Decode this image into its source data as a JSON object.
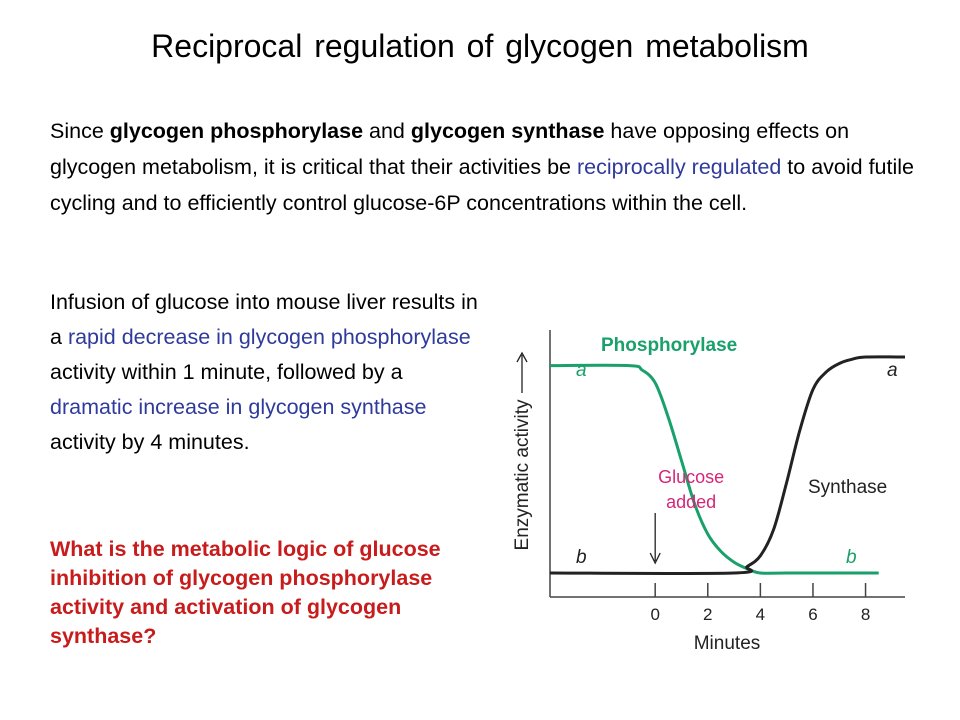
{
  "slide": {
    "title": "Reciprocal regulation of glycogen metabolism",
    "intro": {
      "t1": "Since ",
      "b1": "glycogen phosphorylase",
      "t2": " and ",
      "b2": "glycogen synthase",
      "t3": " have opposing effects on glycogen metabolism, it is critical that their activities be ",
      "h1": "reciprocally regulated",
      "t4": " to avoid futile cycling and to efficiently control glucose-6P concentrations within the cell."
    },
    "para2": {
      "t1": "Infusion of glucose into mouse liver results in a ",
      "h1": "rapid decrease in glycogen phosphorylase",
      "t2": " activity within 1 minute, followed by a ",
      "h2": "dramatic increase in glycogen synthase",
      "t3": " activity by 4 minutes."
    },
    "question": "What is the metabolic logic of glucose inhibition of glycogen phosphorylase activity and activation of glycogen synthase?",
    "colors": {
      "text": "#000000",
      "highlight": "#2e3a9c",
      "question": "#c81b1b",
      "phosphorylase": "#1aa06a",
      "synthase": "#222222",
      "glucose_label": "#d6257a"
    }
  },
  "chart_data": {
    "type": "line",
    "xlabel": "Minutes",
    "ylabel": "Enzymatic activity",
    "x_ticks": [
      0,
      2,
      4,
      6,
      8
    ],
    "xlim": [
      -4,
      9.5
    ],
    "ylim": [
      0,
      1
    ],
    "series": [
      {
        "name": "Phosphorylase",
        "x": [
          -4,
          -1,
          -0.5,
          0,
          0.5,
          1,
          1.5,
          2,
          2.5,
          3,
          3.5,
          4,
          5,
          8.5
        ],
        "y": [
          0.96,
          0.96,
          0.94,
          0.88,
          0.72,
          0.52,
          0.32,
          0.18,
          0.1,
          0.05,
          0.02,
          0,
          0,
          0
        ],
        "start_label": "a",
        "end_label": "b"
      },
      {
        "name": "Synthase",
        "x": [
          -4,
          3,
          3.5,
          4,
          4.5,
          5,
          5.5,
          6,
          6.5,
          7,
          7.5,
          8,
          9.5
        ],
        "y": [
          0,
          0,
          0.03,
          0.08,
          0.2,
          0.42,
          0.66,
          0.85,
          0.93,
          0.97,
          0.99,
          1,
          1
        ],
        "start_label": "b",
        "end_label": "a"
      }
    ],
    "annotations": [
      {
        "text_line1": "Glucose",
        "text_line2": "added",
        "x": 0
      }
    ]
  }
}
